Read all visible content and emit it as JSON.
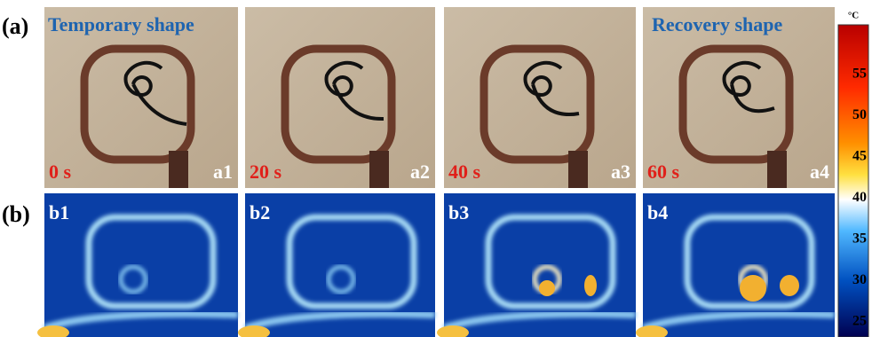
{
  "panel_a": {
    "label": "(a)",
    "captions": [
      "Temporary shape",
      "Recovery shape"
    ],
    "frames": [
      {
        "time": "0 s",
        "id": "a1"
      },
      {
        "time": "20 s",
        "id": "a2"
      },
      {
        "time": "40 s",
        "id": "a3"
      },
      {
        "time": "60 s",
        "id": "a4"
      }
    ]
  },
  "panel_b": {
    "label": "(b)",
    "frames": [
      {
        "id": "b1"
      },
      {
        "id": "b2"
      },
      {
        "id": "b3"
      },
      {
        "id": "b4"
      }
    ]
  },
  "colorbar": {
    "unit": "°C",
    "ticks": [
      55,
      50,
      45,
      40,
      35,
      30,
      25
    ]
  }
}
